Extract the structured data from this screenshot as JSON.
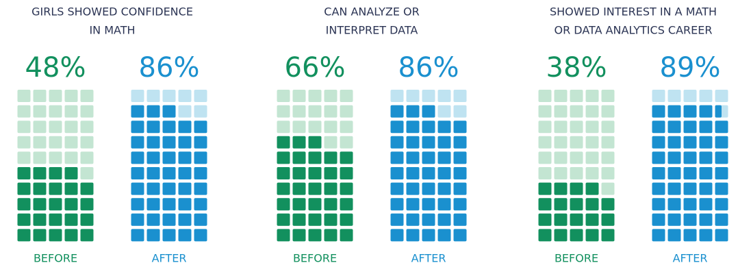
{
  "chart_data": [
    {
      "type": "waffle",
      "title": [
        "GIRLS SHOWED CONFIDENCE",
        "IN MATH"
      ],
      "categories": [
        "BEFORE",
        "AFTER"
      ],
      "values": [
        48,
        86
      ],
      "value_labels": [
        "48%",
        "86%"
      ],
      "colors": [
        "#12905e",
        "#1a90cf"
      ],
      "light_colors": [
        "#c3e5d2",
        "#bfe3f1"
      ]
    },
    {
      "type": "waffle",
      "title": [
        "CAN ANALYZE OR",
        "INTERPRET DATA"
      ],
      "categories": [
        "BEFORE",
        "AFTER"
      ],
      "values": [
        66,
        86
      ],
      "value_labels": [
        "66%",
        "86%"
      ],
      "colors": [
        "#12905e",
        "#1a90cf"
      ],
      "light_colors": [
        "#c3e5d2",
        "#bfe3f1"
      ]
    },
    {
      "type": "waffle",
      "title": [
        "SHOWED INTEREST IN A MATH",
        "OR DATA ANALYTICS CAREER"
      ],
      "categories": [
        "BEFORE",
        "AFTER"
      ],
      "values": [
        38,
        89
      ],
      "value_labels": [
        "38%",
        "89%"
      ],
      "colors": [
        "#12905e",
        "#1a90cf"
      ],
      "light_colors": [
        "#c3e5d2",
        "#bfe3f1"
      ]
    }
  ]
}
